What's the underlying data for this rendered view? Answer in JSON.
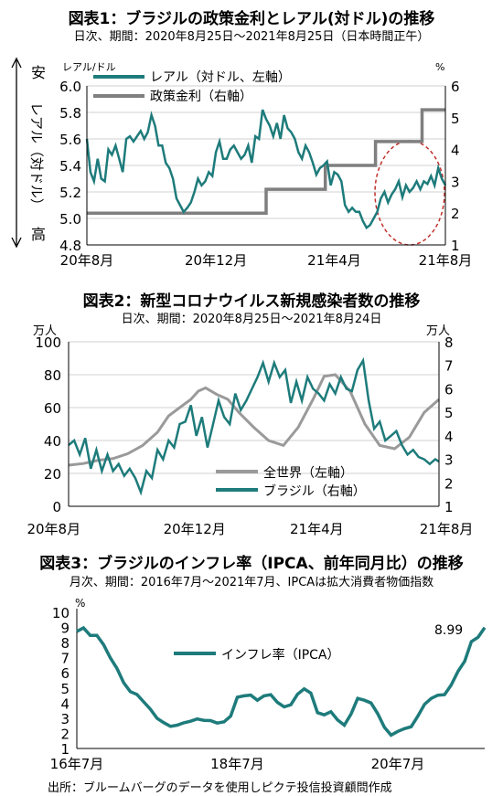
{
  "source": "出所：ブルームバーグのデータを使用しピクテ投信投資顧問作成",
  "colors": {
    "teal": "#1e7b7b",
    "gray": "#7f7f7f",
    "lightgray": "#9a9a9a",
    "red": "#c0302a",
    "grid": "#d0d0d0"
  },
  "chart_data": [
    {
      "type": "line",
      "title": "図表1：ブラジルの政策金利とレアル(対ドル)の推移",
      "subtitle": "日次、期間：2020年8月25日～2021年8月25日（日本時間正午）",
      "ylabel": "レアル/ドル",
      "y2label": "%",
      "side_label_top": "安",
      "side_label_mid": "レアル（対ドル）",
      "side_label_bottom": "高",
      "ylim": [
        4.8,
        6.0
      ],
      "y2lim": [
        1,
        6
      ],
      "yticks": [
        "6.0",
        "5.8",
        "5.6",
        "5.4",
        "5.2",
        "5.0",
        "4.8"
      ],
      "y2ticks": [
        "6",
        "5",
        "4",
        "3",
        "2",
        "1"
      ],
      "xticks": [
        "20年8月",
        "20年12月",
        "21年4月",
        "21年8月"
      ],
      "legend": "top-left",
      "series": [
        {
          "name": "レアル（対ドル、左軸）",
          "axis": "left",
          "color": "#1e7b7b",
          "x": [
            0,
            0.01,
            0.02,
            0.03,
            0.04,
            0.05,
            0.06,
            0.07,
            0.08,
            0.09,
            0.1,
            0.11,
            0.12,
            0.13,
            0.14,
            0.15,
            0.16,
            0.17,
            0.18,
            0.19,
            0.2,
            0.21,
            0.22,
            0.23,
            0.24,
            0.25,
            0.26,
            0.27,
            0.28,
            0.29,
            0.3,
            0.31,
            0.32,
            0.33,
            0.34,
            0.35,
            0.36,
            0.37,
            0.38,
            0.39,
            0.4,
            0.41,
            0.42,
            0.43,
            0.44,
            0.45,
            0.46,
            0.47,
            0.48,
            0.49,
            0.5,
            0.51,
            0.52,
            0.53,
            0.54,
            0.55,
            0.56,
            0.57,
            0.58,
            0.59,
            0.6,
            0.61,
            0.62,
            0.63,
            0.64,
            0.65,
            0.66,
            0.67,
            0.68,
            0.69,
            0.7,
            0.71,
            0.72,
            0.73,
            0.74,
            0.75,
            0.76,
            0.77,
            0.78,
            0.79,
            0.8,
            0.81,
            0.82,
            0.83,
            0.84,
            0.85,
            0.86,
            0.87,
            0.88,
            0.89,
            0.9,
            0.91,
            0.92,
            0.93,
            0.94,
            0.95,
            0.96,
            0.97,
            0.98,
            0.99,
            1.0
          ],
          "values": [
            5.6,
            5.35,
            5.28,
            5.45,
            5.3,
            5.28,
            5.52,
            5.48,
            5.55,
            5.45,
            5.35,
            5.6,
            5.62,
            5.58,
            5.62,
            5.66,
            5.6,
            5.65,
            5.78,
            5.7,
            5.55,
            5.55,
            5.42,
            5.38,
            5.3,
            5.15,
            5.1,
            5.05,
            5.08,
            5.12,
            5.2,
            5.3,
            5.25,
            5.28,
            5.35,
            5.32,
            5.5,
            5.58,
            5.45,
            5.45,
            5.52,
            5.55,
            5.5,
            5.45,
            5.48,
            5.55,
            5.42,
            5.62,
            5.6,
            5.82,
            5.75,
            5.7,
            5.62,
            5.72,
            5.6,
            5.78,
            5.68,
            5.65,
            5.6,
            5.5,
            5.45,
            5.55,
            5.5,
            5.42,
            5.33,
            5.38,
            5.4,
            5.43,
            5.25,
            5.35,
            5.33,
            5.28,
            5.1,
            5.05,
            5.08,
            5.05,
            5.05,
            4.98,
            4.93,
            4.95,
            5.0,
            5.05,
            5.15,
            5.2,
            5.12,
            5.18,
            5.22,
            5.28,
            5.16,
            5.25,
            5.2,
            5.23,
            5.28,
            5.22,
            5.28,
            5.26,
            5.32,
            5.25,
            5.38,
            5.3,
            5.25
          ]
        },
        {
          "name": "政策金利（右軸）",
          "axis": "right",
          "color": "#7f7f7f",
          "steps": [
            [
              0,
              2.0
            ],
            [
              0.5,
              2.0
            ],
            [
              0.5,
              2.75
            ],
            [
              0.665,
              2.75
            ],
            [
              0.665,
              3.5
            ],
            [
              0.805,
              3.5
            ],
            [
              0.805,
              4.25
            ],
            [
              0.935,
              4.25
            ],
            [
              0.935,
              5.25
            ],
            [
              1.0,
              5.25
            ]
          ]
        }
      ]
    },
    {
      "type": "line",
      "title": "図表2：新型コロナウイルス新規感染者数の推移",
      "subtitle": "日次、期間：2020年8月25日～2021年8月24日",
      "ylabel": "万人",
      "y2label": "万人",
      "ylim": [
        0,
        100
      ],
      "y2lim": [
        1,
        8
      ],
      "yticks": [
        "100",
        "80",
        "60",
        "40",
        "20",
        "0"
      ],
      "y2ticks": [
        "8",
        "7",
        "6",
        "5",
        "4",
        "3",
        "2",
        "1"
      ],
      "xticks": [
        "20年8月",
        "20年12月",
        "21年4月",
        "21年8月"
      ],
      "legend": "bottom-center",
      "series": [
        {
          "name": "全世界（左軸）",
          "axis": "left",
          "color": "#9a9a9a",
          "x": [
            0,
            0.04,
            0.08,
            0.12,
            0.16,
            0.2,
            0.24,
            0.27,
            0.3,
            0.33,
            0.35,
            0.37,
            0.4,
            0.43,
            0.46,
            0.5,
            0.54,
            0.58,
            0.62,
            0.66,
            0.69,
            0.72,
            0.76,
            0.8,
            0.84,
            0.88,
            0.92,
            0.96,
            1.0
          ],
          "values": [
            25,
            26,
            28,
            29,
            32,
            37,
            45,
            55,
            60,
            65,
            70,
            72,
            68,
            65,
            57,
            48,
            40,
            37,
            48,
            65,
            79,
            80,
            70,
            50,
            37,
            35,
            42,
            57,
            65
          ]
        },
        {
          "name": "ブラジル（右軸）",
          "axis": "right",
          "color": "#1e7b7b",
          "x": [
            0,
            0.015,
            0.03,
            0.045,
            0.06,
            0.075,
            0.09,
            0.105,
            0.12,
            0.135,
            0.15,
            0.165,
            0.18,
            0.195,
            0.21,
            0.225,
            0.24,
            0.255,
            0.27,
            0.285,
            0.3,
            0.315,
            0.33,
            0.345,
            0.36,
            0.375,
            0.39,
            0.405,
            0.42,
            0.435,
            0.45,
            0.465,
            0.48,
            0.495,
            0.51,
            0.525,
            0.54,
            0.555,
            0.57,
            0.585,
            0.6,
            0.615,
            0.63,
            0.645,
            0.66,
            0.675,
            0.69,
            0.705,
            0.72,
            0.735,
            0.75,
            0.765,
            0.78,
            0.795,
            0.81,
            0.825,
            0.84,
            0.855,
            0.87,
            0.885,
            0.9,
            0.915,
            0.93,
            0.945,
            0.96,
            0.975,
            0.99,
            1.0
          ],
          "values": [
            3.6,
            3.8,
            3.2,
            3.9,
            2.6,
            3.4,
            2.5,
            3.2,
            2.5,
            2.8,
            2.3,
            2.6,
            2.2,
            1.6,
            2.5,
            2.2,
            3.4,
            3.0,
            3.8,
            3.5,
            4.5,
            4.6,
            5.3,
            4.0,
            4.8,
            3.5,
            4.5,
            5.5,
            4.8,
            4.5,
            5.8,
            5.1,
            5.5,
            6.0,
            6.5,
            7.1,
            6.3,
            7.1,
            6.5,
            6.8,
            5.4,
            6.3,
            5.5,
            6.5,
            6.0,
            5.8,
            5.5,
            6.2,
            5.8,
            6.5,
            6.0,
            5.9,
            6.8,
            7.2,
            5.5,
            4.3,
            4.6,
            3.8,
            4.0,
            4.2,
            3.6,
            3.2,
            3.4,
            3.1,
            3.0,
            2.8,
            3.0,
            2.9
          ]
        }
      ]
    },
    {
      "type": "line",
      "title": "図表3：ブラジルのインフレ率（IPCA、前年同月比）の推移",
      "subtitle": "月次、期間：2016年7月～2021年7月、IPCAは拡大消費者物価指数",
      "ylabel": "%",
      "ylim": [
        1,
        10
      ],
      "yticks": [
        "10",
        "9",
        "8",
        "7",
        "6",
        "5",
        "4",
        "3",
        "2",
        "1"
      ],
      "xticks": [
        "16年7月",
        "18年7月",
        "20年7月"
      ],
      "legend": "top-center",
      "annotation": "8.99",
      "series": [
        {
          "name": "インフレ率（IPCA）",
          "axis": "left",
          "color": "#1e7b7b",
          "values": [
            8.74,
            8.97,
            8.48,
            8.48,
            7.87,
            6.99,
            6.29,
            5.35,
            4.76,
            4.57,
            4.08,
            3.6,
            3.0,
            2.71,
            2.46,
            2.54,
            2.7,
            2.8,
            2.95,
            2.86,
            2.84,
            2.68,
            2.76,
            3.14,
            4.39,
            4.48,
            4.53,
            4.19,
            4.48,
            4.56,
            4.05,
            3.75,
            3.89,
            4.58,
            4.94,
            4.66,
            3.37,
            3.22,
            3.43,
            2.89,
            2.54,
            3.27,
            4.31,
            4.19,
            4.01,
            3.3,
            2.4,
            1.88,
            2.13,
            2.31,
            2.44,
            3.14,
            3.92,
            4.31,
            4.52,
            4.56,
            5.2,
            6.1,
            6.76,
            8.06,
            8.35,
            8.99
          ]
        }
      ]
    }
  ]
}
